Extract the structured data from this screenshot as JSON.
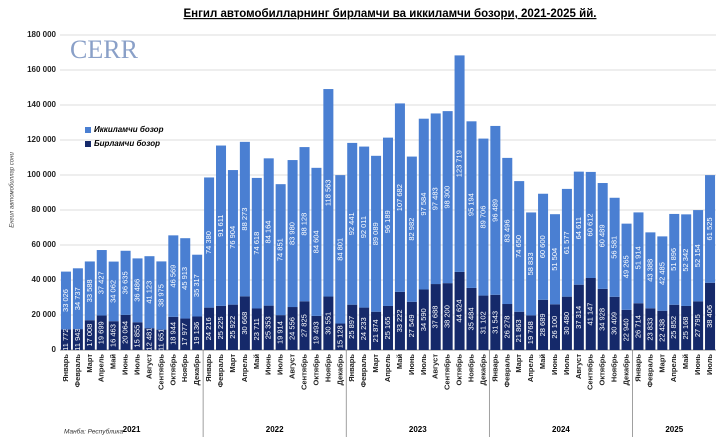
{
  "chart_data": {
    "type": "stacked_bar",
    "title": "Енгил автомобилларнинг бирламчи ва иккиламчи бозори, 2021-2025 йй.",
    "y_label": "Енгил автомобиллар сони",
    "source": "Манба: Республика",
    "logo": "CERR",
    "categories": [
      "Январь",
      "Февраль",
      "Март",
      "Апрель",
      "Май",
      "Июнь",
      "Июль",
      "Август",
      "Сентябрь",
      "Октябрь",
      "Ноябрь",
      "Декабрь",
      "Январь",
      "Февраль",
      "Март",
      "Апрель",
      "Май",
      "Июнь",
      "Июль",
      "Август",
      "Сентябрь",
      "Октябрь",
      "Ноябрь",
      "Декабрь",
      "Январь",
      "Февраль",
      "Март",
      "Апрель",
      "Май",
      "Июнь",
      "Июль",
      "Август",
      "Сентябрь",
      "Октябрь",
      "Ноябрь",
      "Декабрь",
      "Январь",
      "Февраль",
      "Март",
      "Апрель",
      "Май",
      "Июнь",
      "Июль",
      "Август",
      "Сентябрь",
      "Октябрь",
      "Ноябрь",
      "Декабрь",
      "Январь",
      "Февраль",
      "Март",
      "Апрель",
      "Май",
      "Июнь",
      "Июль"
    ],
    "years": [
      "2021",
      "2022",
      "2023",
      "2024",
      "2025"
    ],
    "series": [
      {
        "name": "Бирламчи бозор",
        "color": "#15296a",
        "values": [
          11772,
          11943,
          17008,
          19699,
          16463,
          20064,
          15855,
          12481,
          11651,
          18944,
          17977,
          19136,
          24216,
          25225,
          25922,
          30668,
          23711,
          25353,
          19914,
          24556,
          27825,
          19493,
          30551,
          15128,
          25897,
          24233,
          21874,
          25165,
          33222,
          27549,
          34590,
          37688,
          38200,
          44624,
          35484,
          31102,
          31543,
          26278,
          21863,
          19768,
          28689,
          26100,
          30480,
          37314,
          41147,
          34928,
          30409,
          22940,
          26714,
          23833,
          22438,
          25852,
          25168,
          27795,
          38406
        ],
        "value_labels": [
          "11 772",
          "11 943",
          "17 008",
          "19 699",
          "16 463",
          "20 064",
          "15 855",
          "12 481",
          "11 651",
          "18 944",
          "17 977",
          "19 136",
          "24 216",
          "25 225",
          "25 922",
          "30 668",
          "23 711",
          "25 353",
          "19 914",
          "24 556",
          "27 825",
          "19 493",
          "30 551",
          "15 128",
          "25 897",
          "24 233",
          "21 874",
          "25 165",
          "33 222",
          "27 549",
          "34 590",
          "37 688",
          "38 200",
          "44 624",
          "35 484",
          "31 102",
          "31 543",
          "26 278",
          "21 863",
          "19 768",
          "28 689",
          "26 100",
          "30 480",
          "37 314",
          "41 147",
          "34 928",
          "30 409",
          "22 940",
          "26 714",
          "23 833",
          "22 438",
          "25 852",
          "25 168",
          "27 795",
          "38 406"
        ]
      },
      {
        "name": "Иккиламчи бозор",
        "color": "#4a7fd2",
        "values": [
          33026,
          34737,
          33588,
          37427,
          34062,
          36635,
          36486,
          41123,
          38975,
          46569,
          45913,
          35317,
          74380,
          91611,
          76904,
          88273,
          74618,
          84164,
          74851,
          83980,
          88128,
          84604,
          118563,
          84801,
          92441,
          92011,
          89089,
          96189,
          107682,
          82982,
          97584,
          97483,
          98300,
          123719,
          95194,
          89706,
          96489,
          83496,
          74650,
          58833,
          60600,
          51504,
          61577,
          64611,
          60612,
          60489,
          56581,
          49265,
          51914,
          43388,
          42485,
          51896,
          52342,
          52154,
          61525
        ],
        "value_labels": [
          "33 026",
          "34 737",
          "33 588",
          "37 427",
          "34 062",
          "36 635",
          "36 486",
          "41 123",
          "38 975",
          "46 569",
          "45 913",
          "35 317",
          "74 380",
          "91 611",
          "76 904",
          "88 273",
          "74 618",
          "84 164",
          "74 851",
          "83 980",
          "88 128",
          "84 604",
          "118 563",
          "84 801",
          "92 441",
          "92 011",
          "89 089",
          "96 189",
          "107 682",
          "82 982",
          "97 584",
          "97 483",
          "98 300",
          "123 719",
          "95 194",
          "89 706",
          "96 489",
          "83 496",
          "74 650",
          "58 833",
          "60 600",
          "51 504",
          "61 577",
          "64 611",
          "60 612",
          "60 489",
          "56 581",
          "49 265",
          "51 914",
          "43 388",
          "42 485",
          "51 896",
          "52 342",
          "52 154",
          "61 525"
        ]
      }
    ],
    "ylim": [
      0,
      180000
    ],
    "yticks": [
      0,
      {
        "value": 20000,
        "label": "20 000"
      },
      {
        "value": 40000,
        "label": "40 000"
      },
      {
        "value": 60000,
        "label": "60 000"
      },
      {
        "value": 80000,
        "label": "80 000"
      },
      {
        "value": 100000,
        "label": "100 000"
      },
      {
        "value": 120000,
        "label": "120 000"
      },
      {
        "value": 140000,
        "label": "140 000"
      },
      {
        "value": 160000,
        "label": "160 000"
      },
      {
        "value": 180000,
        "label": "180 000"
      }
    ],
    "grid": true
  }
}
